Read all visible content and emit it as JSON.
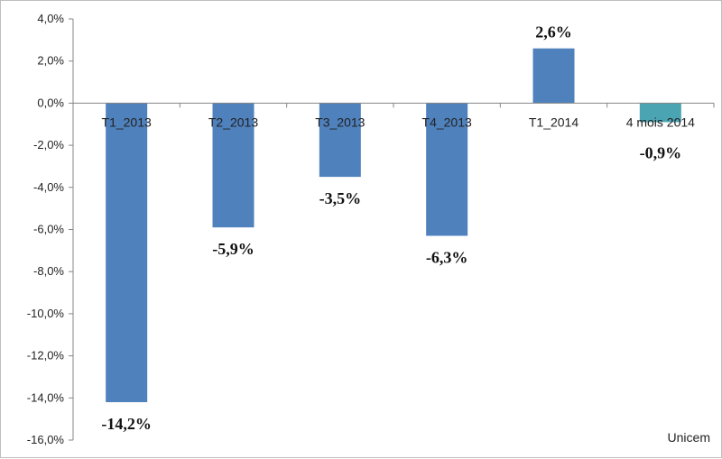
{
  "chart_data": {
    "type": "bar",
    "categories": [
      "T1_2013",
      "T2_2013",
      "T3_2013",
      "T4_2013",
      "T1_2014",
      "4 mois 2014"
    ],
    "values": [
      -14.2,
      -5.9,
      -3.5,
      -6.3,
      2.6,
      -0.9
    ],
    "data_labels": [
      "-14,2%",
      "-5,9%",
      "-3,5%",
      "-6,3%",
      "2,6%",
      "-0,9%"
    ],
    "ylim": [
      -16,
      4
    ],
    "yticks": [
      4,
      2,
      0,
      -2,
      -4,
      -6,
      -8,
      -10,
      -12,
      -14,
      -16
    ],
    "ytick_labels": [
      "4,0%",
      "2,0%",
      "0,0%",
      "-2,0%",
      "-4,0%",
      "-6,0%",
      "-8,0%",
      "-10,0%",
      "-12,0%",
      "-14,0%",
      "-16,0%"
    ],
    "bar_colors": [
      "#4f81bd",
      "#4f81bd",
      "#4f81bd",
      "#4f81bd",
      "#4f81bd",
      "#4aa4b2"
    ],
    "grid": false,
    "legend": "none",
    "source": "Unicem"
  }
}
